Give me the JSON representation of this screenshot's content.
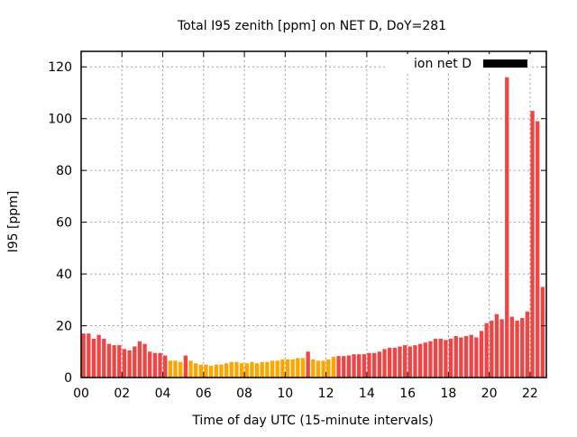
{
  "chart_data": {
    "type": "bar",
    "title": "Total I95 zenith [ppm] on NET D, DoY=281",
    "xlabel": "Time of day UTC (15-minute intervals)",
    "ylabel": "I95 [ppm]",
    "legend": {
      "label": "ion net D",
      "placement": "top-right",
      "color": "#000000"
    },
    "xlim": [
      0,
      22.8
    ],
    "ylim": [
      0,
      126
    ],
    "grid": true,
    "xticks": [
      0,
      2,
      4,
      6,
      8,
      10,
      12,
      14,
      16,
      18,
      20,
      22
    ],
    "xtick_labels": [
      "00",
      "02",
      "04",
      "06",
      "08",
      "10",
      "12",
      "14",
      "16",
      "18",
      "20",
      "22"
    ],
    "yticks": [
      0,
      20,
      40,
      60,
      80,
      100,
      120
    ],
    "ytick_labels": [
      "0",
      "20",
      "40",
      "60",
      "80",
      "100",
      "120"
    ],
    "interval_hours": 0.25,
    "colors": {
      "high": "#f04545",
      "low": "#ffa500",
      "threshold": 8
    },
    "values": [
      17,
      17,
      15,
      16.5,
      15,
      13,
      12.5,
      12.5,
      11,
      10.5,
      12,
      14,
      13,
      10,
      9.5,
      9.5,
      8.5,
      6.5,
      6.5,
      6,
      8.5,
      6.5,
      5.5,
      5,
      5,
      4.5,
      5,
      5,
      5.5,
      6,
      6,
      5.5,
      5.5,
      6,
      5.5,
      6,
      6,
      6.5,
      6.5,
      7,
      7,
      7,
      7.5,
      7.5,
      10,
      7,
      6.5,
      6.5,
      7,
      8,
      8.3,
      8.3,
      8.5,
      9,
      9,
      9,
      9.5,
      9.5,
      10,
      11,
      11.5,
      11.5,
      12,
      12.5,
      12,
      12.5,
      13,
      13.5,
      14,
      15,
      15,
      14.5,
      15,
      16,
      15.5,
      16,
      16.5,
      15.5,
      18,
      21,
      22,
      24.5,
      22.5,
      116,
      23.5,
      22,
      23,
      25.5,
      103,
      99,
      35,
      28
    ]
  }
}
